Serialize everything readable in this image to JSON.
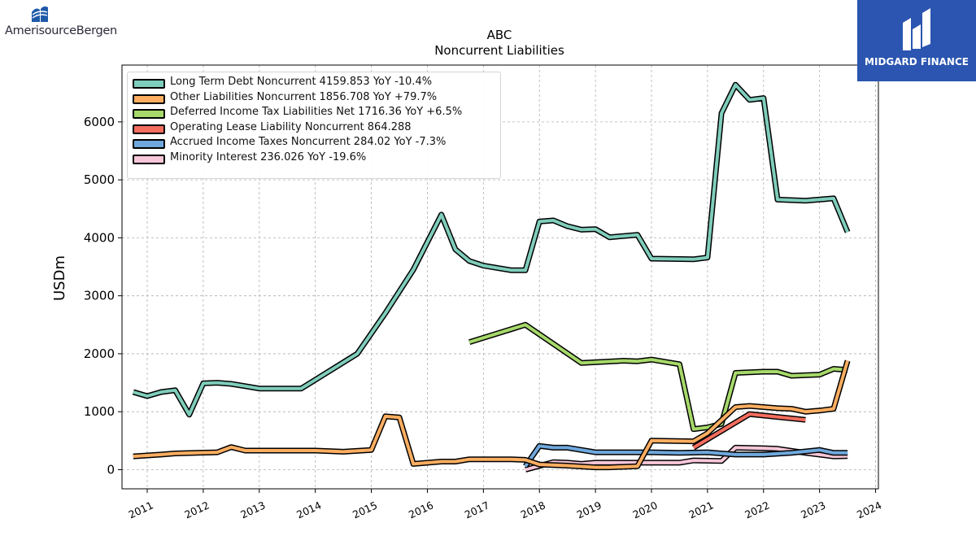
{
  "brand_left": {
    "name": "AmerisourceBergen"
  },
  "brand_right": {
    "name": "MIDGARD FINANCE"
  },
  "chart_data": {
    "type": "line",
    "title": "ABC",
    "subtitle": "Noncurrent  Liabilities",
    "ylabel": "USDm",
    "xlabel": "",
    "xlim": [
      2010.55,
      2024.05
    ],
    "ylim": [
      -330,
      6980
    ],
    "x_ticks": [
      2011,
      2012,
      2013,
      2014,
      2015,
      2016,
      2017,
      2018,
      2019,
      2020,
      2021,
      2022,
      2023,
      2024
    ],
    "y_ticks": [
      0,
      1000,
      2000,
      3000,
      4000,
      5000,
      6000
    ],
    "grid": true,
    "legend_position": "top-left",
    "series": [
      {
        "name": "Long Term Debt Noncurrent",
        "legend_label": "Long Term Debt Noncurrent  4159.853 YoY -10.4%",
        "color": "#7fcdbb",
        "points": [
          [
            2010.75,
            1340
          ],
          [
            2011.0,
            1270
          ],
          [
            2011.25,
            1340
          ],
          [
            2011.5,
            1370
          ],
          [
            2011.75,
            950
          ],
          [
            2012.0,
            1490
          ],
          [
            2012.25,
            1500
          ],
          [
            2012.5,
            1480
          ],
          [
            2012.75,
            1440
          ],
          [
            2013.0,
            1400
          ],
          [
            2013.25,
            1400
          ],
          [
            2013.5,
            1400
          ],
          [
            2013.75,
            1400
          ],
          [
            2014.75,
            2000
          ],
          [
            2015.25,
            2700
          ],
          [
            2015.75,
            3450
          ],
          [
            2016.25,
            4400
          ],
          [
            2016.5,
            3800
          ],
          [
            2016.75,
            3600
          ],
          [
            2017.0,
            3520
          ],
          [
            2017.5,
            3440
          ],
          [
            2017.75,
            3440
          ],
          [
            2018.0,
            4280
          ],
          [
            2018.25,
            4300
          ],
          [
            2018.5,
            4200
          ],
          [
            2018.75,
            4140
          ],
          [
            2019.0,
            4150
          ],
          [
            2019.25,
            4010
          ],
          [
            2019.75,
            4050
          ],
          [
            2020.0,
            3640
          ],
          [
            2020.75,
            3630
          ],
          [
            2021.0,
            3660
          ],
          [
            2021.25,
            6150
          ],
          [
            2021.5,
            6640
          ],
          [
            2021.75,
            6380
          ],
          [
            2022.0,
            6410
          ],
          [
            2022.25,
            4660
          ],
          [
            2022.75,
            4640
          ],
          [
            2023.25,
            4680
          ],
          [
            2023.5,
            4100
          ]
        ]
      },
      {
        "name": "Other Liabilities Noncurrent",
        "legend_label": "Other Liabilities Noncurrent  1856.708 YoY +79.7%",
        "color": "#fdae61",
        "points": [
          [
            2010.75,
            230
          ],
          [
            2011.25,
            260
          ],
          [
            2011.5,
            280
          ],
          [
            2012.25,
            300
          ],
          [
            2012.5,
            390
          ],
          [
            2012.75,
            330
          ],
          [
            2013.5,
            330
          ],
          [
            2014.0,
            330
          ],
          [
            2014.5,
            310
          ],
          [
            2015.0,
            340
          ],
          [
            2015.25,
            920
          ],
          [
            2015.5,
            900
          ],
          [
            2015.75,
            100
          ],
          [
            2016.25,
            140
          ],
          [
            2016.5,
            140
          ],
          [
            2016.75,
            180
          ],
          [
            2017.5,
            180
          ],
          [
            2017.75,
            170
          ],
          [
            2018.0,
            90
          ],
          [
            2018.5,
            70
          ],
          [
            2019.0,
            40
          ],
          [
            2019.25,
            40
          ],
          [
            2019.75,
            60
          ],
          [
            2020.0,
            500
          ],
          [
            2020.75,
            490
          ],
          [
            2021.0,
            630
          ],
          [
            2021.5,
            1080
          ],
          [
            2021.75,
            1100
          ],
          [
            2022.25,
            1060
          ],
          [
            2022.5,
            1050
          ],
          [
            2022.75,
            1000
          ],
          [
            2023.0,
            1020
          ],
          [
            2023.25,
            1050
          ],
          [
            2023.5,
            1880
          ]
        ]
      },
      {
        "name": "Deferred Income Tax Liabilities Net",
        "legend_label": "Deferred Income Tax Liabilities Net  1716.36 YoY +6.5%",
        "color": "#a6d96a",
        "points": [
          [
            2016.75,
            2200
          ],
          [
            2017.75,
            2500
          ],
          [
            2018.75,
            1840
          ],
          [
            2019.5,
            1880
          ],
          [
            2019.75,
            1870
          ],
          [
            2020.0,
            1900
          ],
          [
            2020.5,
            1820
          ],
          [
            2020.75,
            700
          ],
          [
            2021.0,
            730
          ],
          [
            2021.25,
            790
          ],
          [
            2021.5,
            1670
          ],
          [
            2022.0,
            1690
          ],
          [
            2022.25,
            1690
          ],
          [
            2022.5,
            1620
          ],
          [
            2023.0,
            1640
          ],
          [
            2023.25,
            1740
          ],
          [
            2023.5,
            1720
          ]
        ]
      },
      {
        "name": "Operating Lease Liability Noncurrent",
        "legend_label": "Operating Lease Liability Noncurrent  864.288",
        "color": "#f46d5e",
        "points": [
          [
            2020.75,
            380
          ],
          [
            2021.75,
            960
          ],
          [
            2022.75,
            860
          ]
        ]
      },
      {
        "name": "Accrued Income Taxes Noncurrent",
        "legend_label": "Accrued Income Taxes Noncurrent  284.02 YoY -7.3%",
        "color": "#6fa8dc",
        "points": [
          [
            2017.75,
            60
          ],
          [
            2018.0,
            410
          ],
          [
            2018.25,
            380
          ],
          [
            2018.5,
            380
          ],
          [
            2019.0,
            300
          ],
          [
            2020.0,
            300
          ],
          [
            2020.5,
            290
          ],
          [
            2021.0,
            300
          ],
          [
            2021.5,
            260
          ],
          [
            2022.0,
            260
          ],
          [
            2022.5,
            290
          ],
          [
            2023.0,
            340
          ],
          [
            2023.25,
            290
          ],
          [
            2023.5,
            290
          ]
        ]
      },
      {
        "name": "Minority Interest",
        "legend_label": "Minority Interest  236.026 YoY -19.6%",
        "color": "#f7c6d9",
        "points": [
          [
            2017.75,
            0
          ],
          [
            2018.25,
            130
          ],
          [
            2018.5,
            120
          ],
          [
            2018.75,
            100
          ],
          [
            2019.0,
            120
          ],
          [
            2020.5,
            120
          ],
          [
            2020.75,
            160
          ],
          [
            2021.25,
            150
          ],
          [
            2021.5,
            380
          ],
          [
            2022.0,
            370
          ],
          [
            2022.25,
            360
          ],
          [
            2022.75,
            290
          ],
          [
            2023.25,
            230
          ],
          [
            2023.5,
            236
          ]
        ]
      }
    ]
  }
}
